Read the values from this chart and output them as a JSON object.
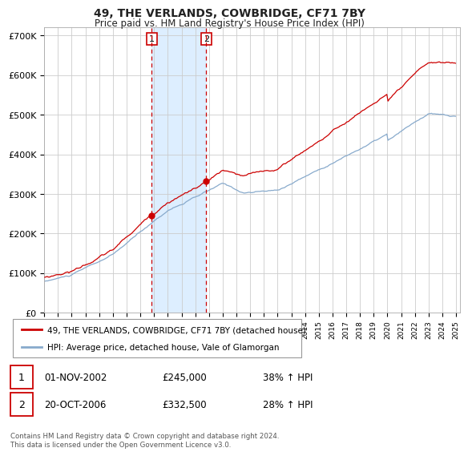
{
  "title": "49, THE VERLANDS, COWBRIDGE, CF71 7BY",
  "subtitle": "Price paid vs. HM Land Registry's House Price Index (HPI)",
  "legend_line1": "49, THE VERLANDS, COWBRIDGE, CF71 7BY (detached house)",
  "legend_line2": "HPI: Average price, detached house, Vale of Glamorgan",
  "transaction1_date": "01-NOV-2002",
  "transaction1_price": 245000,
  "transaction1_label": "38% ↑ HPI",
  "transaction2_date": "20-OCT-2006",
  "transaction2_price": 332500,
  "transaction2_label": "28% ↑ HPI",
  "footer": "Contains HM Land Registry data © Crown copyright and database right 2024.\nThis data is licensed under the Open Government Licence v3.0.",
  "red_color": "#cc0000",
  "blue_color": "#88aacc",
  "shading_color": "#ddeeff",
  "grid_color": "#cccccc",
  "background_color": "#ffffff",
  "ylim": [
    0,
    720000
  ],
  "yticks": [
    0,
    100000,
    200000,
    300000,
    400000,
    500000,
    600000,
    700000
  ],
  "ytick_labels": [
    "£0",
    "£100K",
    "£200K",
    "£300K",
    "£400K",
    "£500K",
    "£600K",
    "£700K"
  ],
  "start_year": 1995,
  "end_year": 2025,
  "t1_year": 2002.833,
  "t2_year": 2006.792,
  "t1_price": 245000,
  "t2_price": 332500
}
